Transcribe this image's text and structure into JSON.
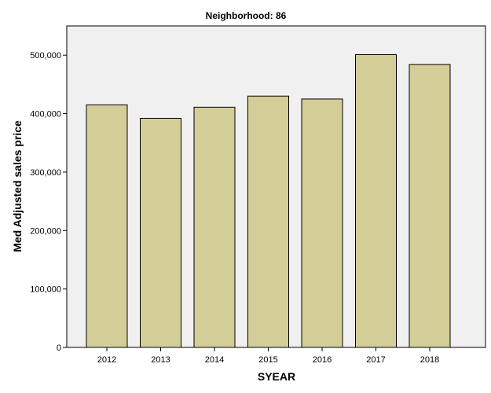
{
  "chart_data": {
    "type": "bar",
    "title": "Neighborhood: 86",
    "xlabel": "SYEAR",
    "ylabel": "Med Adjusted sales price",
    "categories": [
      "2012",
      "2013",
      "2014",
      "2015",
      "2016",
      "2017",
      "2018"
    ],
    "values": [
      415000,
      392000,
      411000,
      430000,
      425000,
      501000,
      484000
    ],
    "ylim": [
      0,
      550000
    ],
    "yticks": [
      0,
      100000,
      200000,
      300000,
      400000,
      500000
    ],
    "ytick_labels": [
      "0",
      "100,000",
      "200,000",
      "300,000",
      "400,000",
      "500,000"
    ],
    "grid": false,
    "colors": {
      "bar_fill": "#d3ce97",
      "bar_stroke": "#000000",
      "plot_background": "#f0f0f0"
    }
  }
}
